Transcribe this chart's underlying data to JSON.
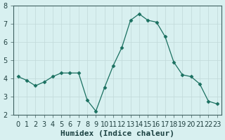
{
  "xlabel": "Humidex (Indice chaleur)",
  "ylabel": "",
  "bg_color": "#d8f0f0",
  "grid_color_major": "#c0d8d8",
  "grid_color_minor": "#e8f8f8",
  "line_color": "#1a7060",
  "marker_color": "#1a7060",
  "x_values": [
    0,
    1,
    2,
    3,
    4,
    5,
    6,
    7,
    8,
    9,
    10,
    11,
    12,
    13,
    14,
    15,
    16,
    17,
    18,
    19,
    20,
    21,
    22,
    23
  ],
  "y_values": [
    4.1,
    3.9,
    3.6,
    3.8,
    4.1,
    4.3,
    4.3,
    4.3,
    2.8,
    2.2,
    3.5,
    4.7,
    5.7,
    7.2,
    7.55,
    7.2,
    7.1,
    6.3,
    4.9,
    4.2,
    4.1,
    3.7,
    2.75,
    2.6
  ],
  "ylim": [
    2,
    8
  ],
  "xlim": [
    -0.5,
    23.5
  ],
  "yticks": [
    2,
    3,
    4,
    5,
    6,
    7,
    8
  ],
  "xticks": [
    0,
    1,
    2,
    3,
    4,
    5,
    6,
    7,
    8,
    9,
    10,
    11,
    12,
    13,
    14,
    15,
    16,
    17,
    18,
    19,
    20,
    21,
    22,
    23
  ],
  "marker_indices": [
    0,
    1,
    2,
    3,
    4,
    5,
    6,
    7,
    8,
    9,
    10,
    11,
    12,
    13,
    14,
    15,
    16,
    17,
    18,
    19,
    20,
    21,
    22,
    23
  ],
  "tick_fontsize": 7,
  "label_fontsize": 8
}
